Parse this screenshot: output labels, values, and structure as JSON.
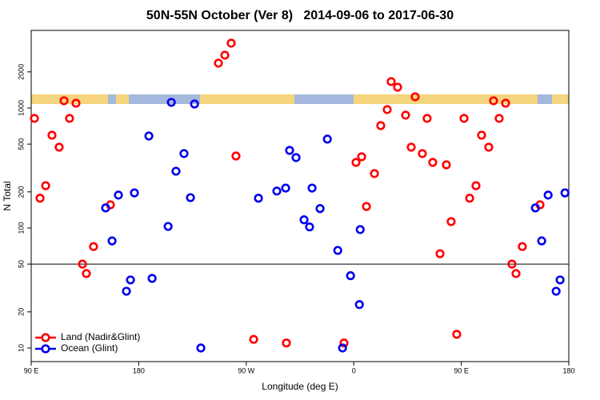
{
  "chart_data": {
    "type": "scatter",
    "title": "50N-55N October (Ver 8)   2014-09-06 to 2017-06-30",
    "x_label": "Longitude (deg E)",
    "y_label": "N Total",
    "log_y": true,
    "xlim": [
      90,
      540
    ],
    "ylim": [
      7.7,
      4430
    ],
    "xticks": [
      {
        "value": 90,
        "label": "90 E"
      },
      180,
      {
        "value": 270,
        "label": "90 W"
      },
      {
        "value": 360,
        "label": "0"
      },
      {
        "value": 450,
        "label": "90 E"
      },
      {
        "value": 540,
        "label": "180"
      }
    ],
    "yticks": [
      10,
      20,
      50,
      100,
      200,
      500,
      1000,
      2000
    ],
    "reference_line": 50,
    "legend": "bottom-left",
    "series": [
      {
        "name": "Land (Nadir&Glint)",
        "color": "#ff0000",
        "x": [
          92.7,
          97.4,
          102.1,
          107.4,
          113.4,
          117.5,
          122.1,
          127.5,
          132.9,
          136.2,
          142.2,
          156.3,
          246.7,
          252.1,
          257.4,
          261.4,
          276.2,
          303.6,
          351.8,
          361.9,
          366.6,
          370.6,
          377.3,
          382.6,
          388,
          391.3,
          396.7,
          403.4,
          408.1,
          411.4,
          417.4,
          421.4,
          426.1,
          432.2,
          437.5,
          441.5,
          446.2,
          452.3,
          457,
          462.3,
          467,
          473,
          477,
          481.7,
          487.1,
          492.4,
          495.8,
          501.1,
          515.9
        ],
        "values": [
          819,
          177,
          225,
          593,
          471,
          1148,
          819,
          1096,
          50,
          41.7,
          70,
          156,
          2362,
          2754,
          3467,
          398,
          11.8,
          11,
          11,
          352,
          392,
          151,
          284,
          713,
          970,
          1660,
          1490,
          871,
          471,
          1240,
          417,
          819,
          352,
          61,
          336,
          113,
          13,
          819,
          177,
          225,
          593,
          471,
          1148,
          819,
          1096,
          50,
          41.7,
          70,
          156
        ]
      },
      {
        "name": "Ocean (Glint)",
        "color": "#0000ee",
        "x": [
          152.3,
          157.7,
          163,
          169.7,
          173.1,
          176.4,
          188.5,
          191.2,
          204.6,
          207.3,
          211.2,
          217.9,
          223.3,
          226.7,
          232,
          280.2,
          295.6,
          303,
          306.3,
          311.7,
          318.4,
          323,
          325.1,
          331.8,
          337.9,
          346.6,
          350.6,
          357.3,
          364.7,
          365.4,
          512,
          517.3,
          522.7,
          529.4,
          532.7,
          536.8
        ],
        "values": [
          147,
          78,
          188,
          29.7,
          36.9,
          196,
          584,
          38,
          103,
          1114,
          297,
          417,
          179,
          1079,
          10,
          177,
          203,
          215,
          443,
          386,
          117,
          102,
          215,
          145,
          550,
          65,
          10,
          40,
          23,
          97,
          147,
          78,
          188,
          29.7,
          36.9,
          196
        ]
      }
    ]
  }
}
